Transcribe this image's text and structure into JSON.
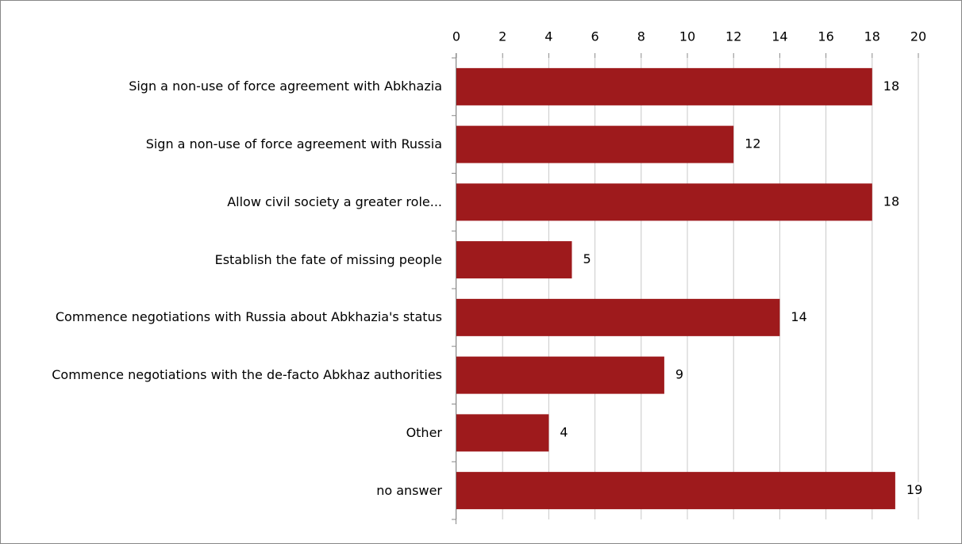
{
  "chart_data": {
    "type": "bar",
    "orientation": "horizontal",
    "categories": [
      "Sign a non-use of force agreement with Abkhazia",
      "Sign a non-use of force agreement with Russia",
      "Allow civil society a greater role...",
      "Establish the fate of missing people",
      "Commence negotiations with Russia about Abkhazia's status",
      "Commence negotiations with the de-facto Abkhaz authorities",
      "Other",
      "no answer"
    ],
    "values": [
      18,
      12,
      18,
      5,
      14,
      9,
      4,
      19
    ],
    "color": "#9e1a1c",
    "xlim": [
      0,
      20
    ],
    "xticks": [
      0,
      2,
      4,
      6,
      8,
      10,
      12,
      14,
      16,
      18,
      20
    ],
    "grid": true
  }
}
